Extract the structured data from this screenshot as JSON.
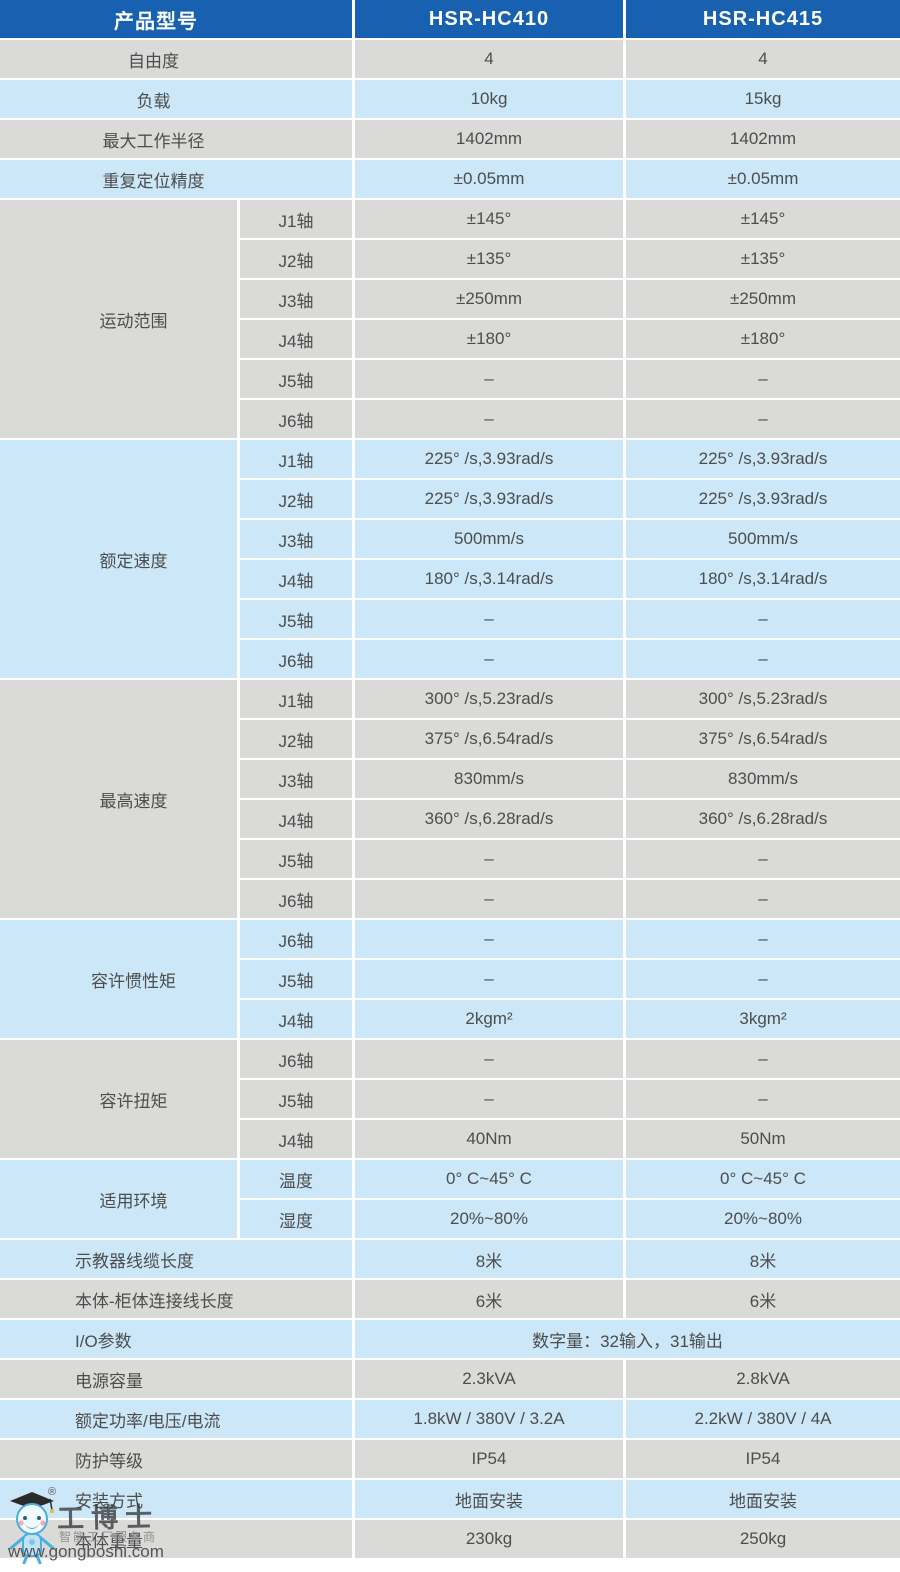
{
  "table": {
    "header": {
      "col_label": "产品型号",
      "col1": "HSR-HC410",
      "col2": "HSR-HC415"
    },
    "colors": {
      "header_bg": "#1761b0",
      "header_text": "#ffffff",
      "row_blue": "#cbe7f8",
      "row_gray": "#dadad8",
      "body_text": "#4d4d4d",
      "separator": "#ffffff"
    },
    "rows": [
      {
        "type": "simple",
        "tone": "gray",
        "align": "center",
        "label": "自由度",
        "v1": "4",
        "v2": "4"
      },
      {
        "type": "simple",
        "tone": "blue",
        "align": "center",
        "label": "负载",
        "v1": "10kg",
        "v2": "15kg"
      },
      {
        "type": "simple",
        "tone": "gray",
        "align": "center",
        "label": "最大工作半径",
        "v1": "1402mm",
        "v2": "1402mm"
      },
      {
        "type": "simple",
        "tone": "blue",
        "align": "center",
        "label": "重复定位精度",
        "v1": "±0.05mm",
        "v2": "±0.05mm"
      },
      {
        "type": "group",
        "tone": "gray",
        "label": "运动范围",
        "subs": [
          {
            "label": "J1轴",
            "v1": "±145°",
            "v2": "±145°"
          },
          {
            "label": "J2轴",
            "v1": "±135°",
            "v2": "±135°"
          },
          {
            "label": "J3轴",
            "v1": "±250mm",
            "v2": "±250mm"
          },
          {
            "label": "J4轴",
            "v1": "±180°",
            "v2": "±180°"
          },
          {
            "label": "J5轴",
            "v1": "–",
            "v2": "–"
          },
          {
            "label": "J6轴",
            "v1": "–",
            "v2": "–"
          }
        ]
      },
      {
        "type": "group",
        "tone": "blue",
        "label": "额定速度",
        "subs": [
          {
            "label": "J1轴",
            "v1": "225° /s,3.93rad/s",
            "v2": "225° /s,3.93rad/s"
          },
          {
            "label": "J2轴",
            "v1": "225° /s,3.93rad/s",
            "v2": "225° /s,3.93rad/s"
          },
          {
            "label": "J3轴",
            "v1": "500mm/s",
            "v2": "500mm/s"
          },
          {
            "label": "J4轴",
            "v1": "180° /s,3.14rad/s",
            "v2": "180° /s,3.14rad/s"
          },
          {
            "label": "J5轴",
            "v1": "–",
            "v2": "–"
          },
          {
            "label": "J6轴",
            "v1": "–",
            "v2": "–"
          }
        ]
      },
      {
        "type": "group",
        "tone": "gray",
        "label": "最高速度",
        "subs": [
          {
            "label": "J1轴",
            "v1": "300° /s,5.23rad/s",
            "v2": "300° /s,5.23rad/s"
          },
          {
            "label": "J2轴",
            "v1": "375° /s,6.54rad/s",
            "v2": "375° /s,6.54rad/s"
          },
          {
            "label": "J3轴",
            "v1": "830mm/s",
            "v2": "830mm/s"
          },
          {
            "label": "J4轴",
            "v1": "360° /s,6.28rad/s",
            "v2": "360° /s,6.28rad/s"
          },
          {
            "label": "J5轴",
            "v1": "–",
            "v2": "–"
          },
          {
            "label": "J6轴",
            "v1": "–",
            "v2": "–"
          }
        ]
      },
      {
        "type": "group",
        "tone": "blue",
        "label": "容许惯性矩",
        "subs": [
          {
            "label": "J6轴",
            "v1": "–",
            "v2": "–"
          },
          {
            "label": "J5轴",
            "v1": "–",
            "v2": "–"
          },
          {
            "label": "J4轴",
            "v1": "2kgm²",
            "v2": "3kgm²"
          }
        ]
      },
      {
        "type": "group",
        "tone": "gray",
        "label": "容许扭矩",
        "subs": [
          {
            "label": "J6轴",
            "v1": "–",
            "v2": "–"
          },
          {
            "label": "J5轴",
            "v1": "–",
            "v2": "–"
          },
          {
            "label": "J4轴",
            "v1": "40Nm",
            "v2": "50Nm"
          }
        ]
      },
      {
        "type": "group",
        "tone": "blue",
        "label": "适用环境",
        "subs": [
          {
            "label": "温度",
            "v1": "0° C~45° C",
            "v2": "0° C~45° C"
          },
          {
            "label": "湿度",
            "v1": "20%~80%",
            "v2": "20%~80%"
          }
        ]
      },
      {
        "type": "simple",
        "tone": "blue",
        "align": "left",
        "label": "示教器线缆长度",
        "v1": "8米",
        "v2": "8米"
      },
      {
        "type": "simple",
        "tone": "gray",
        "align": "left",
        "label": "本体-柜体连接线长度",
        "v1": "6米",
        "v2": "6米"
      },
      {
        "type": "span",
        "tone": "blue",
        "align": "left",
        "label": "I/O参数",
        "value": "数字量：32输入，31输出"
      },
      {
        "type": "simple",
        "tone": "gray",
        "align": "left",
        "label": "电源容量",
        "v1": "2.3kVA",
        "v2": "2.8kVA"
      },
      {
        "type": "simple",
        "tone": "blue",
        "align": "left",
        "label": "额定功率/电压/电流",
        "v1": "1.8kW / 380V / 3.2A",
        "v2": "2.2kW / 380V / 4A"
      },
      {
        "type": "simple",
        "tone": "gray",
        "align": "left",
        "label": "防护等级",
        "v1": "IP54",
        "v2": "IP54"
      },
      {
        "type": "simple",
        "tone": "blue",
        "align": "left",
        "label": "安装方式",
        "v1": "地面安装",
        "v2": "地面安装"
      },
      {
        "type": "simple",
        "tone": "gray",
        "align": "left",
        "label": "本体重量",
        "v1": "230kg",
        "v2": "250kg"
      }
    ]
  },
  "watermark": {
    "registered": "®",
    "brand": "工博士",
    "tagline": "智能工厂服务商",
    "url": "www.gongboshi.com"
  }
}
